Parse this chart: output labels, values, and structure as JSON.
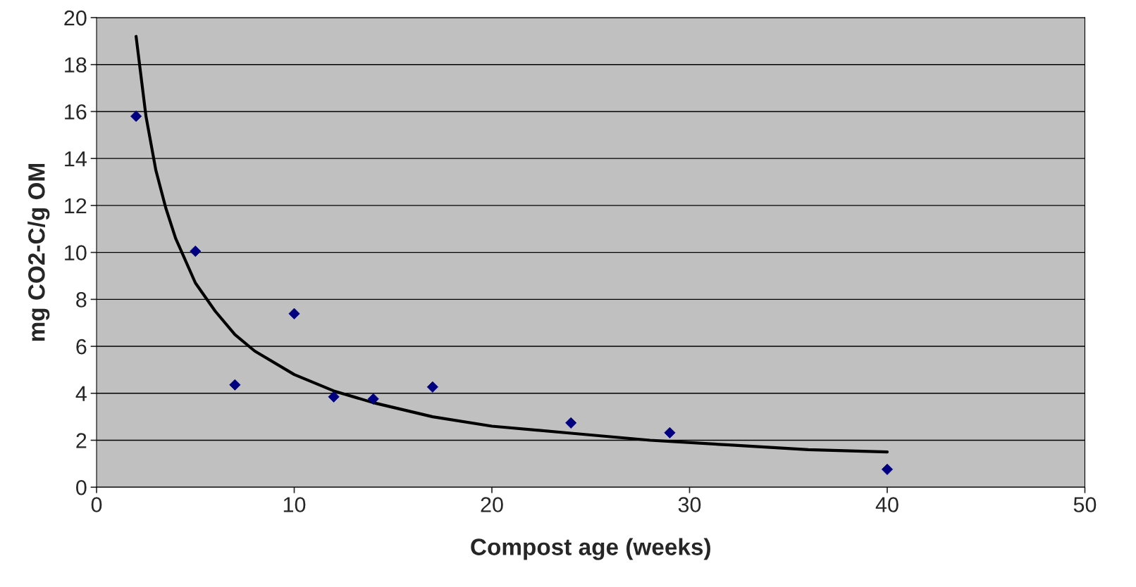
{
  "chart_data": {
    "type": "scatter",
    "xlabel": "Compost age (weeks)",
    "ylabel": "mg CO2-C/g OM",
    "xlim": [
      0,
      50
    ],
    "xticks": [
      0,
      10,
      20,
      30,
      40,
      50
    ],
    "ylim": [
      0,
      20
    ],
    "yticks": [
      0,
      2,
      4,
      6,
      8,
      10,
      12,
      14,
      16,
      18,
      20
    ],
    "grid": "y",
    "legend": false,
    "series": [
      {
        "color": "#000080",
        "marker": "diamond",
        "x": [
          2,
          5,
          7,
          10,
          12,
          14,
          17,
          24,
          29,
          40
        ],
        "values": [
          15.8,
          10.05,
          4.36,
          7.39,
          3.85,
          3.76,
          4.27,
          2.74,
          2.32,
          0.76
        ]
      },
      {
        "type": "line",
        "color": "#000000",
        "marker": "none",
        "line_style": "solid",
        "x": [
          2,
          2.5,
          3,
          3.5,
          4,
          5,
          6,
          7,
          8,
          10,
          12,
          14,
          17,
          20,
          24,
          28,
          32,
          36,
          40
        ],
        "values": [
          19.2,
          15.8,
          13.5,
          11.9,
          10.6,
          8.7,
          7.5,
          6.5,
          5.8,
          4.8,
          4.1,
          3.6,
          3.0,
          2.6,
          2.3,
          2.0,
          1.8,
          1.6,
          1.5
        ]
      }
    ]
  }
}
